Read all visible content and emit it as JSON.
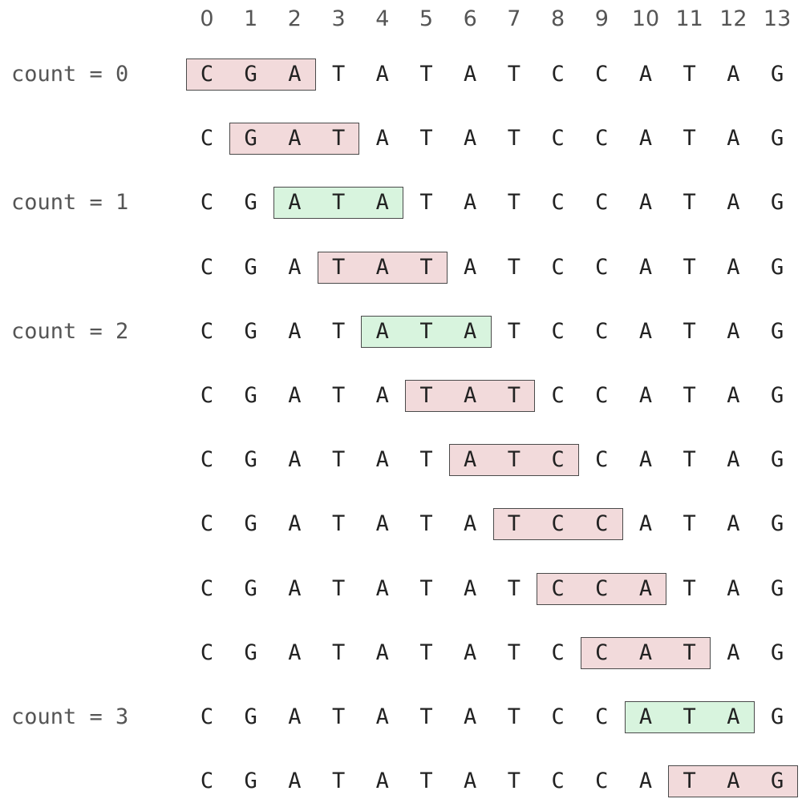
{
  "indices": [
    "0",
    "1",
    "2",
    "3",
    "4",
    "5",
    "6",
    "7",
    "8",
    "9",
    "10",
    "11",
    "12",
    "13"
  ],
  "sequence": [
    "C",
    "G",
    "A",
    "T",
    "A",
    "T",
    "A",
    "T",
    "C",
    "C",
    "A",
    "T",
    "A",
    "G"
  ],
  "window_size": 3,
  "colors": {
    "miss_fill": "#f2dadb",
    "hit_fill": "#d8f4de",
    "box_border": "#4a4a4a"
  },
  "rows": [
    {
      "start": 0,
      "match": false,
      "count_label": "count = 0"
    },
    {
      "start": 1,
      "match": false,
      "count_label": null
    },
    {
      "start": 2,
      "match": true,
      "count_label": "count = 1"
    },
    {
      "start": 3,
      "match": false,
      "count_label": null
    },
    {
      "start": 4,
      "match": true,
      "count_label": "count = 2"
    },
    {
      "start": 5,
      "match": false,
      "count_label": null
    },
    {
      "start": 6,
      "match": false,
      "count_label": null
    },
    {
      "start": 7,
      "match": false,
      "count_label": null
    },
    {
      "start": 8,
      "match": false,
      "count_label": null
    },
    {
      "start": 9,
      "match": false,
      "count_label": null
    },
    {
      "start": 10,
      "match": true,
      "count_label": "count = 3"
    },
    {
      "start": 11,
      "match": false,
      "count_label": null
    }
  ]
}
